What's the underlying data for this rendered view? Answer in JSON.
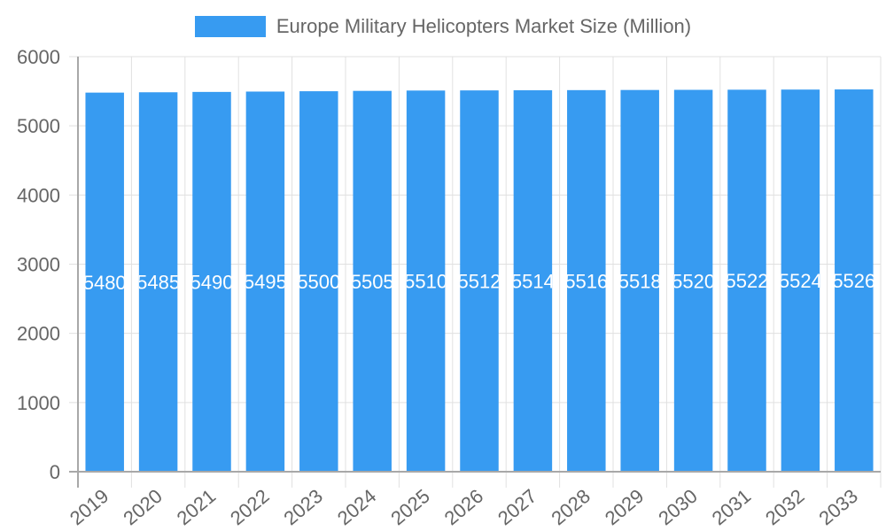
{
  "chart_data": {
    "type": "bar",
    "title": "",
    "legend": [
      {
        "label": "Europe Military Helicopters Market Size (Million)",
        "color": "#379BF1"
      }
    ],
    "legend_position": "top",
    "categories": [
      "2019",
      "2020",
      "2021",
      "2022",
      "2023",
      "2024",
      "2025",
      "2026",
      "2027",
      "2028",
      "2029",
      "2030",
      "2031",
      "2032",
      "2033"
    ],
    "series": [
      {
        "name": "Europe Military Helicopters Market Size (Million)",
        "values": [
          5480,
          5485,
          5490,
          5495,
          5500,
          5505,
          5510,
          5512,
          5514,
          5516,
          5518,
          5520,
          5522,
          5524,
          5526
        ],
        "color": "#379BF1"
      }
    ],
    "xlabel": "",
    "ylabel": "",
    "ylim": [
      0,
      6000
    ],
    "yticks": [
      0,
      1000,
      2000,
      3000,
      4000,
      5000,
      6000
    ],
    "grid": true,
    "data_labels": true
  },
  "legend": {
    "label": "Europe Military Helicopters Market Size (Million)",
    "color": "#379BF1"
  }
}
